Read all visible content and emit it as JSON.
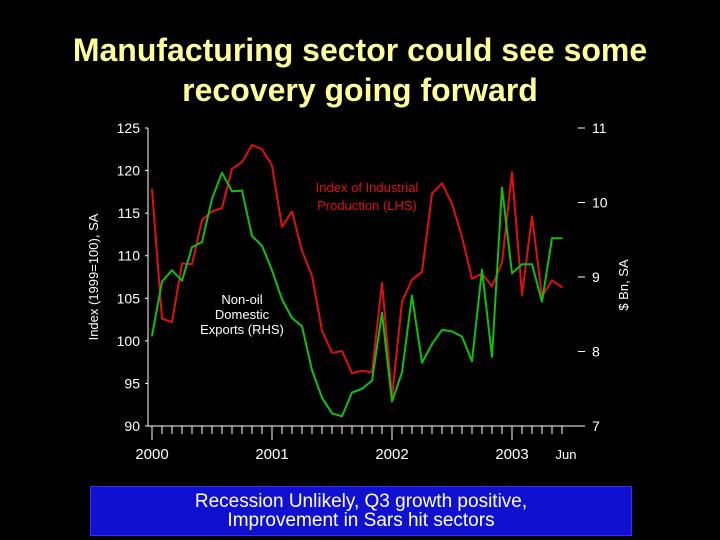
{
  "title": {
    "line1": "Manufacturing sector could see some",
    "line2": "recovery going forward"
  },
  "banner": {
    "line1": "Recession Unlikely, Q3 growth positive,",
    "line2": "Improvement in Sars hit sectors"
  },
  "colors": {
    "background": "#000000",
    "title": "#ffff99",
    "ipi_series": "#e01010",
    "nodx_series": "#10c010",
    "banner_bg": "#1010d0",
    "axis": "#ffffff"
  },
  "chart_data": {
    "type": "line",
    "ylabel_left": "Index (1999=100), SA",
    "ylabel_right": "$ Bn, SA",
    "ylim_left": [
      90,
      125
    ],
    "ylim_right": [
      7,
      11
    ],
    "yticks_left": [
      125,
      120,
      115,
      110,
      105,
      100,
      95,
      90
    ],
    "yticks_right": [
      11,
      10,
      9,
      8,
      7
    ],
    "x_tick_labels": [
      "2000",
      "2001",
      "2002",
      "2003"
    ],
    "x_end_label": "Jun",
    "x_months": 42,
    "annotations": {
      "ipi": [
        "Index of Industrial",
        "Production (LHS)"
      ],
      "nodx": [
        "Non-oil",
        "Domestic",
        "Exports (RHS)"
      ]
    },
    "series": [
      {
        "name": "Index of Industrial Production (LHS)",
        "axis": "left",
        "values": [
          117.8,
          102.6,
          102.2,
          109.1,
          109.0,
          114.2,
          115.2,
          115.6,
          120.2,
          121.0,
          123.0,
          122.5,
          120.6,
          113.4,
          115.2,
          110.6,
          107.6,
          101.2,
          98.6,
          98.8,
          96.2,
          96.5,
          96.3,
          106.8,
          93.4,
          104.6,
          107.2,
          108.1,
          117.3,
          118.5,
          116.1,
          112.2,
          107.3,
          107.9,
          106.4,
          109.2,
          119.8,
          105.4,
          114.6,
          105.2,
          107.1,
          106.3
        ]
      },
      {
        "name": "Non-oil Domestic Exports (RHS)",
        "axis": "right",
        "values": [
          8.21,
          8.94,
          9.09,
          8.95,
          9.4,
          9.47,
          10.05,
          10.4,
          10.15,
          10.16,
          9.55,
          9.42,
          9.09,
          8.7,
          8.45,
          8.34,
          7.75,
          7.38,
          7.17,
          7.13,
          7.45,
          7.5,
          7.61,
          8.52,
          7.33,
          7.72,
          8.75,
          7.85,
          8.1,
          8.29,
          8.27,
          8.2,
          7.87,
          9.1,
          7.93,
          10.2,
          9.05,
          9.17,
          9.17,
          8.67,
          9.52,
          9.52
        ]
      }
    ]
  }
}
